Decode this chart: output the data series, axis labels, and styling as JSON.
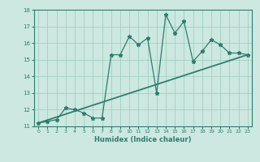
{
  "xlabel": "Humidex (Indice chaleur)",
  "bg_color": "#cce8e0",
  "line_color": "#2e7d6e",
  "x_data": [
    0,
    1,
    2,
    3,
    4,
    5,
    6,
    7,
    8,
    9,
    10,
    11,
    12,
    13,
    14,
    15,
    16,
    17,
    18,
    19,
    20,
    21,
    22,
    23
  ],
  "y_data": [
    11.2,
    11.3,
    11.4,
    12.1,
    12.0,
    11.8,
    11.5,
    11.5,
    15.3,
    15.3,
    16.4,
    15.9,
    16.3,
    13.0,
    17.7,
    16.6,
    17.3,
    14.9,
    15.5,
    16.2,
    15.9,
    15.4,
    15.4,
    15.3
  ],
  "trend_x": [
    0,
    23
  ],
  "trend_y": [
    11.2,
    15.3
  ],
  "ylim": [
    11,
    18
  ],
  "xlim": [
    -0.5,
    23.5
  ],
  "yticks": [
    11,
    12,
    13,
    14,
    15,
    16,
    17,
    18
  ],
  "xticks": [
    0,
    1,
    2,
    3,
    4,
    5,
    6,
    7,
    8,
    9,
    10,
    11,
    12,
    13,
    14,
    15,
    16,
    17,
    18,
    19,
    20,
    21,
    22,
    23
  ],
  "grid_color": "#99ccbb",
  "marker": "*",
  "marker_size": 3.5,
  "linewidth": 0.9,
  "xlabel_fontsize": 6,
  "tick_fontsize": 4.5
}
